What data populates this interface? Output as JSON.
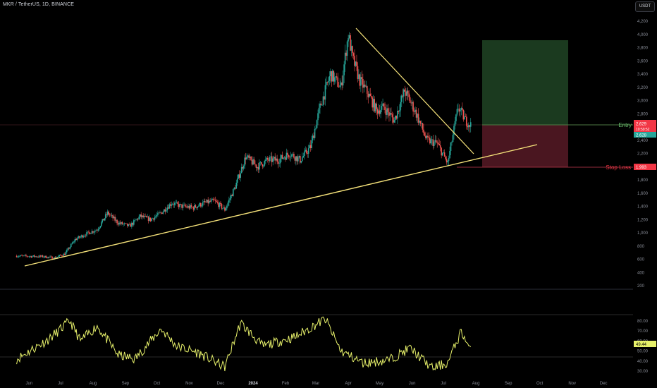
{
  "header": {
    "symbol": "MKR / TetherUS, 1D, BINANCE",
    "currency_button": "USDT"
  },
  "price_axis": {
    "ticks": [
      "4,200",
      "4,000",
      "3,800",
      "3,600",
      "3,400",
      "3,200",
      "3,000",
      "2,800",
      "2,400",
      "2,200",
      "2,000",
      "1,800",
      "1,600",
      "1,400",
      "1,200",
      "1,000",
      "800",
      "600",
      "400",
      "200"
    ]
  },
  "price_labels": {
    "current": "2,629",
    "countdown": "10:59:52",
    "secondary": "2,628",
    "stop": "1,993"
  },
  "annotations": {
    "entry": "Entry",
    "stop_loss": "Stop Loss"
  },
  "rsi": {
    "ticks": [
      "80.00",
      "70.00",
      "60.00",
      "50.00",
      "40.00",
      "30.00"
    ],
    "current": "49.44"
  },
  "time_axis": [
    "Jun",
    "Jul",
    "Aug",
    "Sep",
    "Oct",
    "Nov",
    "Dec",
    "2024",
    "Feb",
    "Mar",
    "Apr",
    "May",
    "Jun",
    "Jul",
    "Aug",
    "Sep",
    "Oct",
    "Nov",
    "Dec"
  ],
  "colors": {
    "up": "#26a69a",
    "down": "#ef5350",
    "trendline": "#f5e27a",
    "rsi_line": "#e6f06a",
    "entry_line": "#5a9a55",
    "stop_line": "#c43d52",
    "entry_label": "#66bb6a",
    "stop_label": "#f23645",
    "profit_zone": "#1b3a1f",
    "loss_zone": "#4a1620"
  },
  "chart_data": {
    "type": "candlestick",
    "symbol": "MKR / TetherUS",
    "interval": "1D",
    "exchange": "BINANCE",
    "y_range": [
      200,
      4200
    ],
    "rsi_range": [
      30,
      80
    ],
    "price_path": [
      [
        "2023-05-20",
        650
      ],
      [
        "2023-06-15",
        640
      ],
      [
        "2023-06-25",
        620
      ],
      [
        "2023-07-05",
        680
      ],
      [
        "2023-07-15",
        900
      ],
      [
        "2023-07-25",
        980
      ],
      [
        "2023-08-05",
        1050
      ],
      [
        "2023-08-15",
        1300
      ],
      [
        "2023-08-25",
        1150
      ],
      [
        "2023-09-05",
        1100
      ],
      [
        "2023-09-15",
        1250
      ],
      [
        "2023-09-25",
        1200
      ],
      [
        "2023-10-05",
        1300
      ],
      [
        "2023-10-15",
        1450
      ],
      [
        "2023-10-25",
        1400
      ],
      [
        "2023-11-05",
        1380
      ],
      [
        "2023-11-15",
        1450
      ],
      [
        "2023-11-25",
        1480
      ],
      [
        "2023-12-05",
        1350
      ],
      [
        "2023-12-15",
        1700
      ],
      [
        "2023-12-25",
        2150
      ],
      [
        "2024-01-05",
        2000
      ],
      [
        "2024-01-15",
        2100
      ],
      [
        "2024-01-25",
        2100
      ],
      [
        "2024-02-05",
        2200
      ],
      [
        "2024-02-15",
        2100
      ],
      [
        "2024-02-25",
        2300
      ],
      [
        "2024-03-05",
        2900
      ],
      [
        "2024-03-15",
        3400
      ],
      [
        "2024-03-25",
        3200
      ],
      [
        "2024-04-01",
        4000
      ],
      [
        "2024-04-05",
        3650
      ],
      [
        "2024-04-12",
        3300
      ],
      [
        "2024-04-20",
        3100
      ],
      [
        "2024-04-28",
        2850
      ],
      [
        "2024-05-05",
        2900
      ],
      [
        "2024-05-15",
        2700
      ],
      [
        "2024-05-25",
        3150
      ],
      [
        "2024-06-05",
        2800
      ],
      [
        "2024-06-15",
        2400
      ],
      [
        "2024-06-25",
        2350
      ],
      [
        "2024-07-05",
        2050
      ],
      [
        "2024-07-15",
        2900
      ],
      [
        "2024-07-22",
        2700
      ],
      [
        "2024-07-27",
        2629
      ]
    ],
    "rsi_path": [
      [
        "2023-05-20",
        42
      ],
      [
        "2023-06-20",
        62
      ],
      [
        "2023-07-10",
        80
      ],
      [
        "2023-07-20",
        60
      ],
      [
        "2023-08-05",
        75
      ],
      [
        "2023-08-25",
        46
      ],
      [
        "2023-09-10",
        42
      ],
      [
        "2023-10-05",
        72
      ],
      [
        "2023-10-20",
        55
      ],
      [
        "2023-11-10",
        48
      ],
      [
        "2023-12-05",
        34
      ],
      [
        "2023-12-20",
        78
      ],
      [
        "2024-01-10",
        55
      ],
      [
        "2024-02-10",
        64
      ],
      [
        "2024-03-10",
        82
      ],
      [
        "2024-03-25",
        50
      ],
      [
        "2024-04-15",
        38
      ],
      [
        "2024-05-10",
        41
      ],
      [
        "2024-05-30",
        53
      ],
      [
        "2024-06-20",
        33
      ],
      [
        "2024-07-05",
        38
      ],
      [
        "2024-07-18",
        70
      ],
      [
        "2024-07-27",
        49.44
      ]
    ],
    "entry_price": 2629,
    "stop_loss_price": 1993,
    "take_profit_price": 3900,
    "trendlines": [
      {
        "from": [
          "2023-06-10",
          500
        ],
        "to": [
          "2024-08-20",
          2300
        ]
      },
      {
        "from": [
          "2024-04-01",
          4100
        ],
        "to": [
          "2024-07-22",
          2200
        ]
      }
    ]
  }
}
